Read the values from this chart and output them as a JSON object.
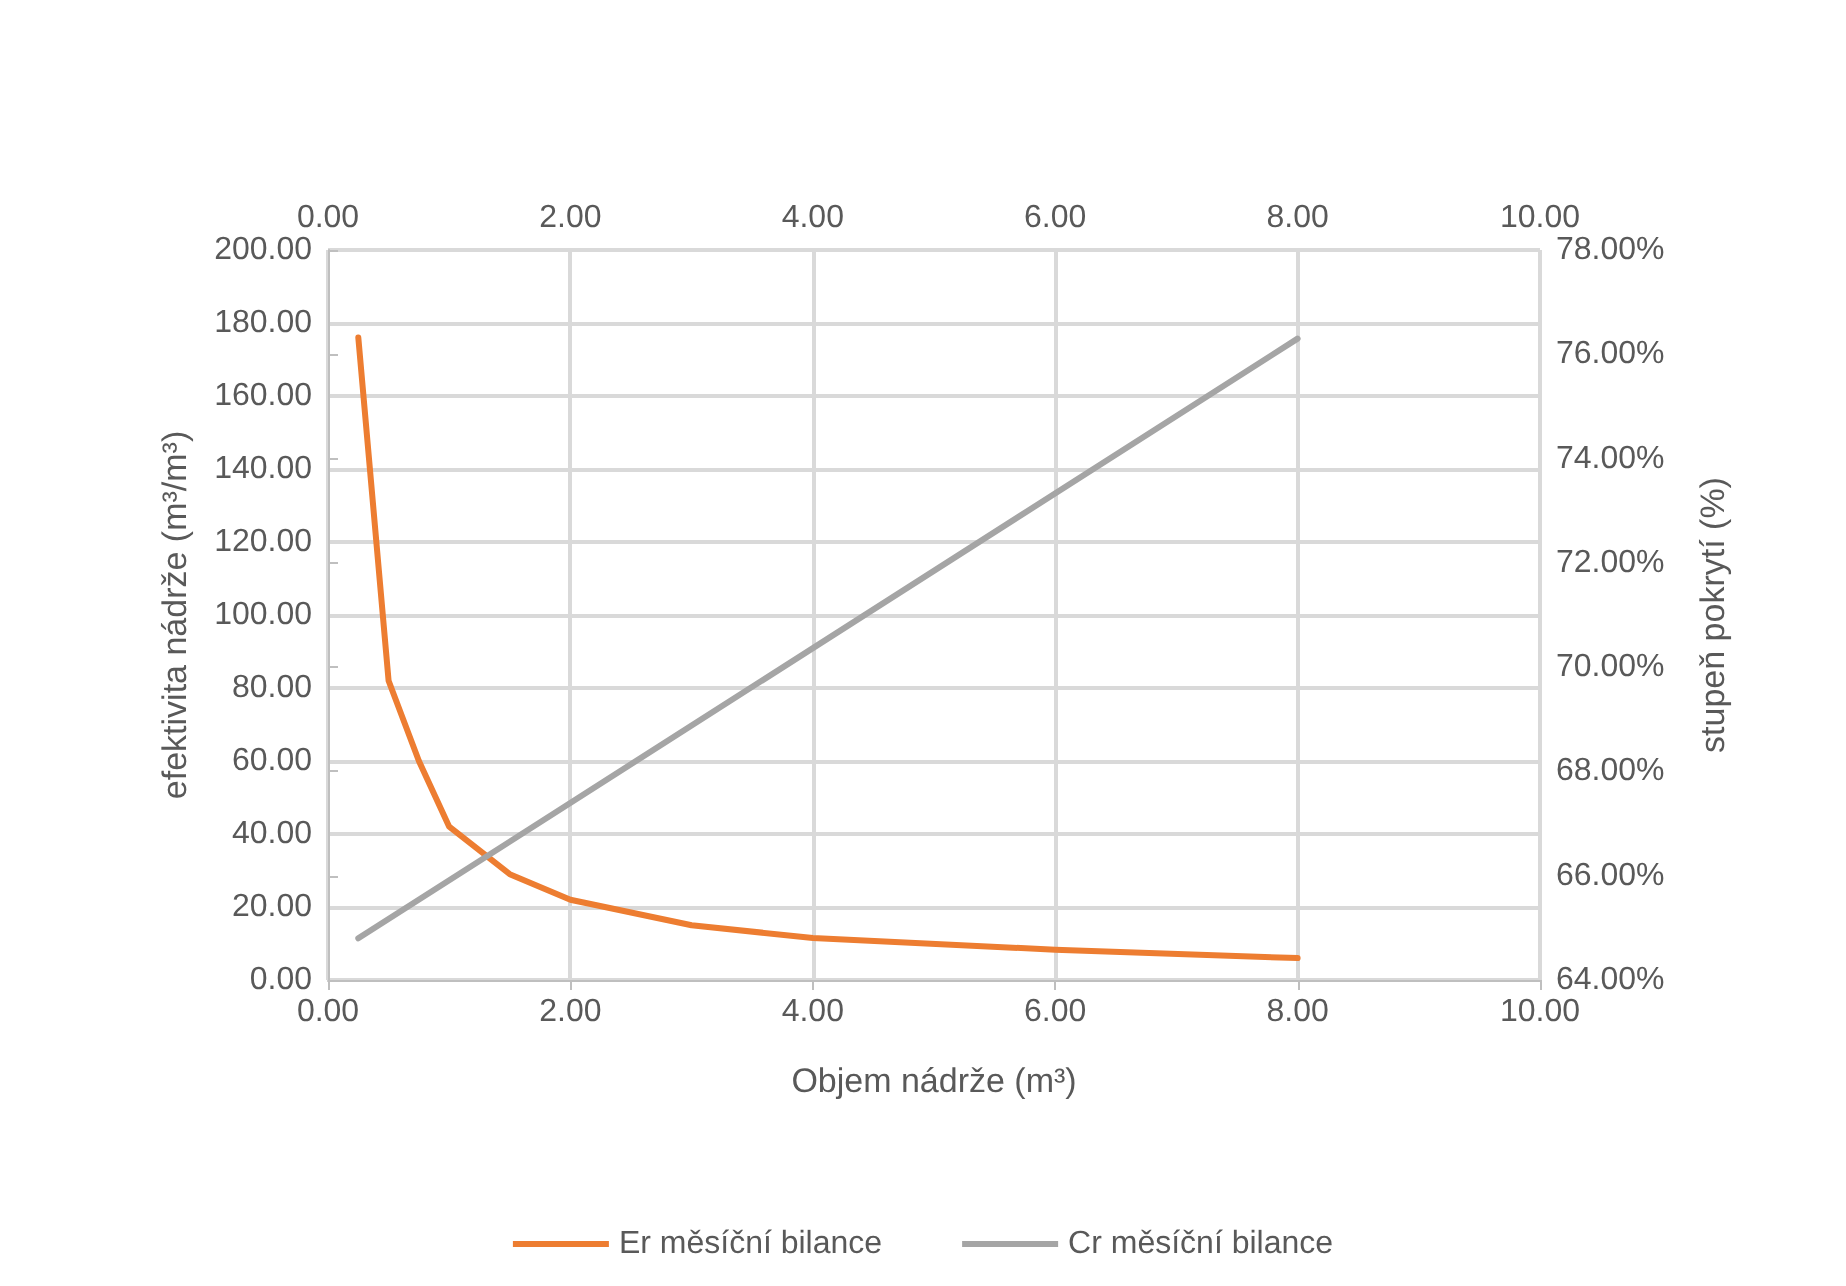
{
  "chart_data": {
    "type": "line",
    "xlabel": "Objem nádrže (m³)",
    "ylabel": "efektivita nádrže (m³/m³)",
    "y2label": "stupeň pokrytí (%)",
    "series": [
      {
        "name": "Er měsíční bilance",
        "color": "#ed7d31",
        "x": [
          0.25,
          0.5,
          0.75,
          1,
          1.5,
          2,
          3,
          4,
          6,
          8
        ],
        "values": [
          176,
          82,
          60,
          42,
          29,
          22,
          15,
          11.5,
          8.3,
          6
        ]
      },
      {
        "name": "Cr měsíční bilance",
        "color": "#a5a5a5",
        "axis": "y2",
        "x": [
          0.25,
          8
        ],
        "values": [
          64.8,
          76.3
        ]
      }
    ],
    "xlim": [
      0,
      10
    ],
    "xticks": [
      {
        "value": 0,
        "label": "0.00"
      },
      {
        "value": 2,
        "label": "2.00"
      },
      {
        "value": 4,
        "label": "4.00"
      },
      {
        "value": 6,
        "label": "6.00"
      },
      {
        "value": 8,
        "label": "8.00"
      },
      {
        "value": 10,
        "label": "10.00"
      }
    ],
    "x2lim": [
      0,
      10
    ],
    "x2ticks": [
      {
        "value": 0,
        "label": "0.00"
      },
      {
        "value": 2,
        "label": "2.00"
      },
      {
        "value": 4,
        "label": "4.00"
      },
      {
        "value": 6,
        "label": "6.00"
      },
      {
        "value": 8,
        "label": "8.00"
      },
      {
        "value": 10,
        "label": "10.00"
      }
    ],
    "ylim": [
      0,
      200
    ],
    "yticks": [
      {
        "value": 0,
        "label": "0.00"
      },
      {
        "value": 20,
        "label": "20.00"
      },
      {
        "value": 40,
        "label": "40.00"
      },
      {
        "value": 60,
        "label": "60.00"
      },
      {
        "value": 80,
        "label": "80.00"
      },
      {
        "value": 100,
        "label": "100.00"
      },
      {
        "value": 120,
        "label": "120.00"
      },
      {
        "value": 140,
        "label": "140.00"
      },
      {
        "value": 160,
        "label": "160.00"
      },
      {
        "value": 180,
        "label": "180.00"
      },
      {
        "value": 200,
        "label": "200.00"
      }
    ],
    "y2lim": [
      64,
      78
    ],
    "y2ticks": [
      {
        "value": 64,
        "label": "64.00%"
      },
      {
        "value": 66,
        "label": "66.00%"
      },
      {
        "value": 68,
        "label": "68.00%"
      },
      {
        "value": 70,
        "label": "70.00%"
      },
      {
        "value": 72,
        "label": "72.00%"
      },
      {
        "value": 74,
        "label": "74.00%"
      },
      {
        "value": 76,
        "label": "76.00%"
      },
      {
        "value": 78,
        "label": "78.00%"
      }
    ],
    "grid": true,
    "legend": "bottom",
    "marker": "none",
    "line_style": "solid"
  }
}
